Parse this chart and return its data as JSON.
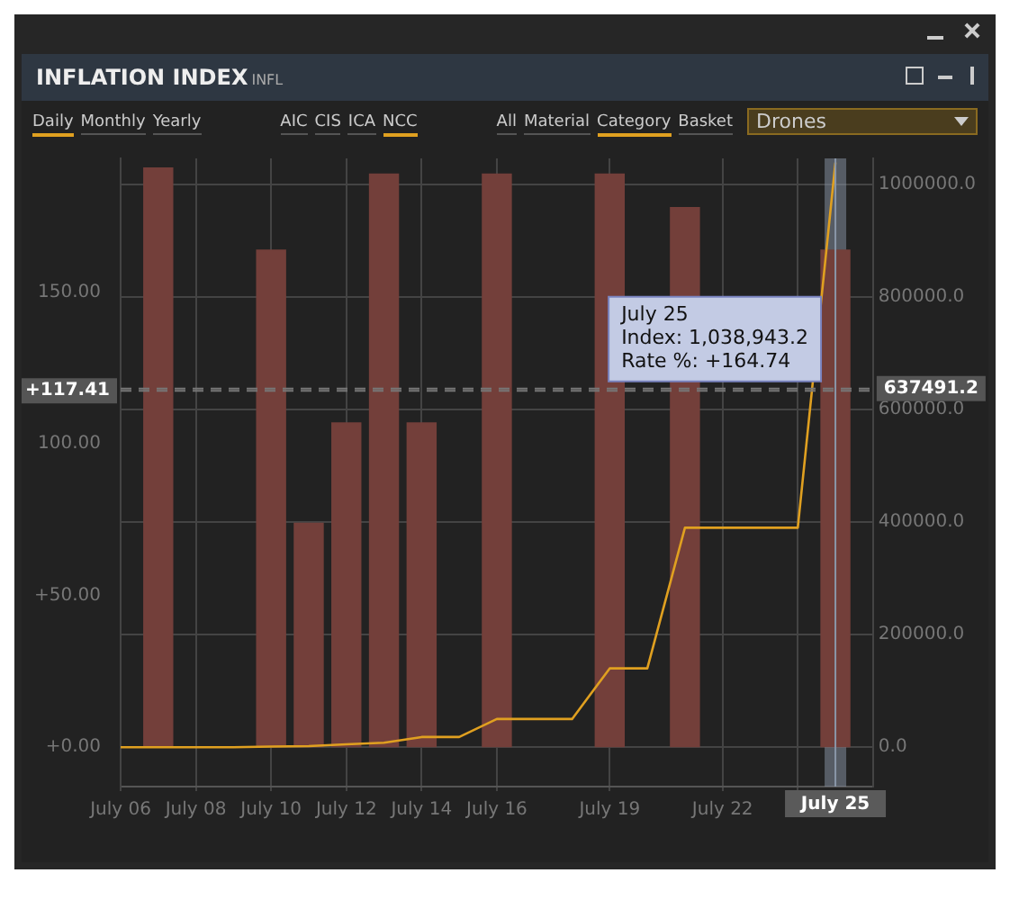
{
  "chart_data": {
    "type": "bar",
    "title": "INFLATION INDEX",
    "subtitle": "INFL",
    "annotations": [
      "Daily",
      "Monthly",
      "Yearly",
      "AIC",
      "CIS",
      "ICA",
      "NCC",
      "All",
      "Material",
      "Category",
      "Basket",
      "Drones",
      "July 25",
      "Index: 1,038,943.2",
      "Rate %: +164.74"
    ],
    "series": [
      {
        "color": "#733f3a",
        "x": [
          "--07-07",
          "--07-10",
          "--07-11",
          "--07-12",
          "--07-13",
          "--07-14",
          "--07-16",
          "--07-19",
          "--07-21",
          "--07-25"
        ],
        "values": [
          191,
          164,
          74,
          107,
          189,
          107,
          189,
          189,
          178,
          164
        ]
      },
      {
        "type": "line",
        "axis": "y2",
        "color": "#e0a020",
        "x": [
          "--07-06",
          "--07-07",
          "--07-08",
          "--07-09",
          "--07-10",
          "--07-11",
          "--07-12",
          "--07-13",
          "--07-14",
          "--07-15",
          "--07-16",
          "--07-17",
          "--07-18",
          "--07-19",
          "--07-20",
          "--07-21",
          "--07-22",
          "--07-23",
          "--07-24",
          "--07-25"
        ],
        "values": [
          0,
          0,
          0,
          0,
          1000,
          2000,
          5000,
          8000,
          18000,
          18000,
          50000,
          50000,
          50000,
          140000,
          140000,
          390000,
          390000,
          390000,
          390000,
          1038943.2
        ]
      }
    ],
    "xlim": [
      "--07-06",
      "--07-26"
    ],
    "xticks": [
      {
        "value": "--07-06",
        "label": "July 06"
      },
      {
        "value": "--07-08",
        "label": "July 08"
      },
      {
        "value": "--07-10",
        "label": "July 10"
      },
      {
        "value": "--07-12",
        "label": "July 12"
      },
      {
        "value": "--07-14",
        "label": "July 14"
      },
      {
        "value": "--07-16",
        "label": "July 16"
      },
      {
        "value": "--07-19",
        "label": "July 19"
      },
      {
        "value": "--07-22",
        "label": "July 22"
      },
      {
        "value": "--07-24",
        "label": null
      }
    ],
    "ylim": [
      -13,
      194
    ],
    "yticks": [
      {
        "value": 0,
        "label": "+0.00"
      },
      {
        "value": 50,
        "label": "+50.00"
      },
      {
        "value": 100,
        "label": "100.00"
      },
      {
        "value": 150,
        "label": "150.00"
      }
    ],
    "y2lim": [
      -70100,
      1046400
    ],
    "y2ticks": [
      {
        "value": 0,
        "label": "0.0"
      },
      {
        "value": 200000,
        "label": "200000.0"
      },
      {
        "value": 400000,
        "label": "400000.0"
      },
      {
        "value": 600000,
        "label": "600000.0"
      },
      {
        "value": 800000,
        "label": "800000.0"
      },
      {
        "value": 1000000,
        "label": "1000000.0"
      }
    ],
    "ref_lines": [
      {
        "axis": "y",
        "value": 117.41,
        "label": "+117.41",
        "line_style": "dashed"
      },
      {
        "axis": "y2",
        "value": 637491.2,
        "label": "637491.2",
        "line_style": "dashed"
      },
      {
        "axis": "x",
        "value": "--07-25",
        "label": "July 25",
        "color": "#8a96a8"
      }
    ],
    "grid": true,
    "legend": false
  }
}
